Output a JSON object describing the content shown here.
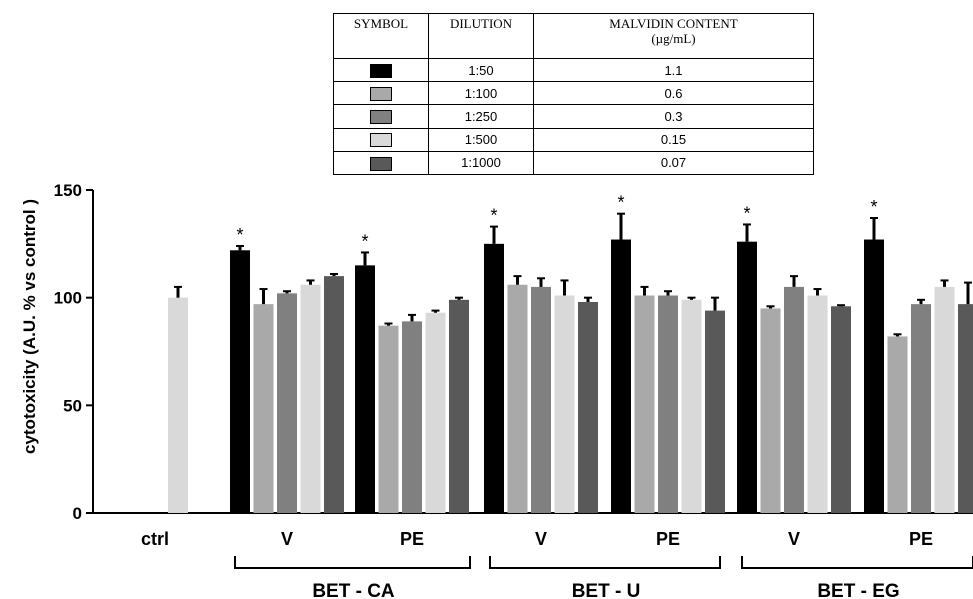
{
  "legend": {
    "headers": [
      "SYMBOL",
      "DILUTION",
      "MALVIDIN CONTENT",
      "(µg/mL)"
    ],
    "rows": [
      {
        "dilution": "1:50",
        "content": "1.1",
        "color": "#000000"
      },
      {
        "dilution": "1:100",
        "content": "0.6",
        "color": "#a9a9a9"
      },
      {
        "dilution": "1:250",
        "content": "0.3",
        "color": "#808080"
      },
      {
        "dilution": "1:500",
        "content": "0.15",
        "color": "#d9d9d9"
      },
      {
        "dilution": "1:1000",
        "content": "0.07",
        "color": "#595959"
      }
    ]
  },
  "chart_data": {
    "type": "bar",
    "ylabel": "cytotoxicity (A.U. % vs control )",
    "ylim": [
      0,
      150
    ],
    "yticks": [
      "0",
      "50",
      "100",
      "150"
    ],
    "categories": [
      "ctrl",
      "V",
      "PE",
      "V",
      "PE",
      "V",
      "PE"
    ],
    "groups": [
      {
        "label": "BET - CA",
        "categories": [
          1,
          2
        ]
      },
      {
        "label": "BET - U",
        "categories": [
          3,
          4
        ]
      },
      {
        "label": "BET - EG",
        "categories": [
          5,
          6
        ]
      }
    ],
    "series": [
      {
        "name": "1:50",
        "color": "#000000",
        "values": [
          null,
          122,
          115,
          125,
          127,
          126,
          127
        ],
        "errors": [
          null,
          2,
          6,
          8,
          12,
          8,
          10
        ]
      },
      {
        "name": "1:100",
        "color": "#a9a9a9",
        "values": [
          null,
          97,
          87,
          106,
          101,
          95,
          82
        ],
        "errors": [
          null,
          7,
          1,
          4,
          4,
          1,
          1
        ]
      },
      {
        "name": "1:250",
        "color": "#808080",
        "values": [
          null,
          102,
          89,
          105,
          101,
          105,
          97
        ],
        "errors": [
          null,
          1,
          3,
          4,
          2,
          5,
          2
        ]
      },
      {
        "name": "1:500",
        "color": "#d9d9d9",
        "values": [
          100,
          106,
          93,
          101,
          99,
          101,
          105
        ],
        "errors": [
          5,
          2,
          1,
          7,
          1,
          3,
          3
        ]
      },
      {
        "name": "1:1000",
        "color": "#595959",
        "values": [
          null,
          110,
          99,
          98,
          94,
          96,
          97
        ],
        "errors": [
          null,
          1,
          1,
          2,
          6,
          0.5,
          10
        ]
      }
    ],
    "significance": [
      null,
      "*",
      "*",
      "*",
      "*",
      "*",
      "*"
    ]
  }
}
